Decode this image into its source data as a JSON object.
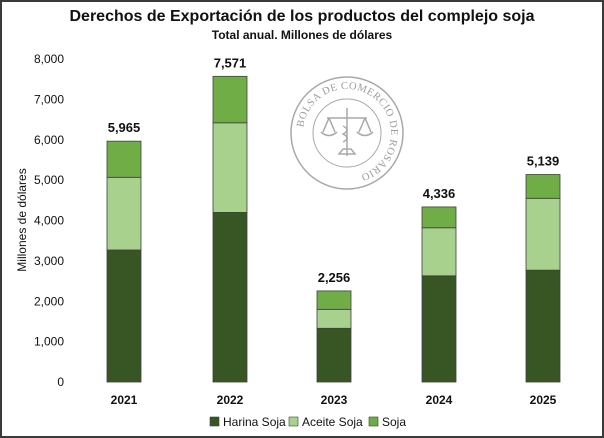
{
  "chart_data": {
    "type": "bar",
    "stacked": true,
    "title": "Derechos de Exportación de los productos del complejo soja",
    "subtitle": "Total anual. Millones de dólares",
    "ylabel": "Millones de dólares",
    "xlabel": "",
    "ylim": [
      0,
      8000
    ],
    "yticks": [
      0,
      1000,
      2000,
      3000,
      4000,
      5000,
      6000,
      7000,
      8000
    ],
    "ytick_labels": [
      "0",
      "1,000",
      "2,000",
      "3,000",
      "4,000",
      "5,000",
      "6,000",
      "7,000",
      "8,000"
    ],
    "grid": false,
    "legend_position": "bottom",
    "categories": [
      "2021",
      "2022",
      "2023",
      "2024",
      "2025"
    ],
    "series": [
      {
        "name": "Harina Soja",
        "color": "#375623",
        "values": [
          3270,
          4200,
          1330,
          2630,
          2770
        ]
      },
      {
        "name": "Aceite Soja",
        "color": "#a9d18e",
        "values": [
          1800,
          2220,
          470,
          1190,
          1780
        ]
      },
      {
        "name": "Soja",
        "color": "#70ad47",
        "values": [
          895,
          1151,
          456,
          516,
          589
        ]
      }
    ],
    "totals": [
      "5,965",
      "7,571",
      "2,256",
      "4,336",
      "5,139"
    ]
  },
  "watermark": {
    "text": "BOLSA DE COMERCIO DE ROSARIO",
    "color": "#8a8a8a"
  }
}
